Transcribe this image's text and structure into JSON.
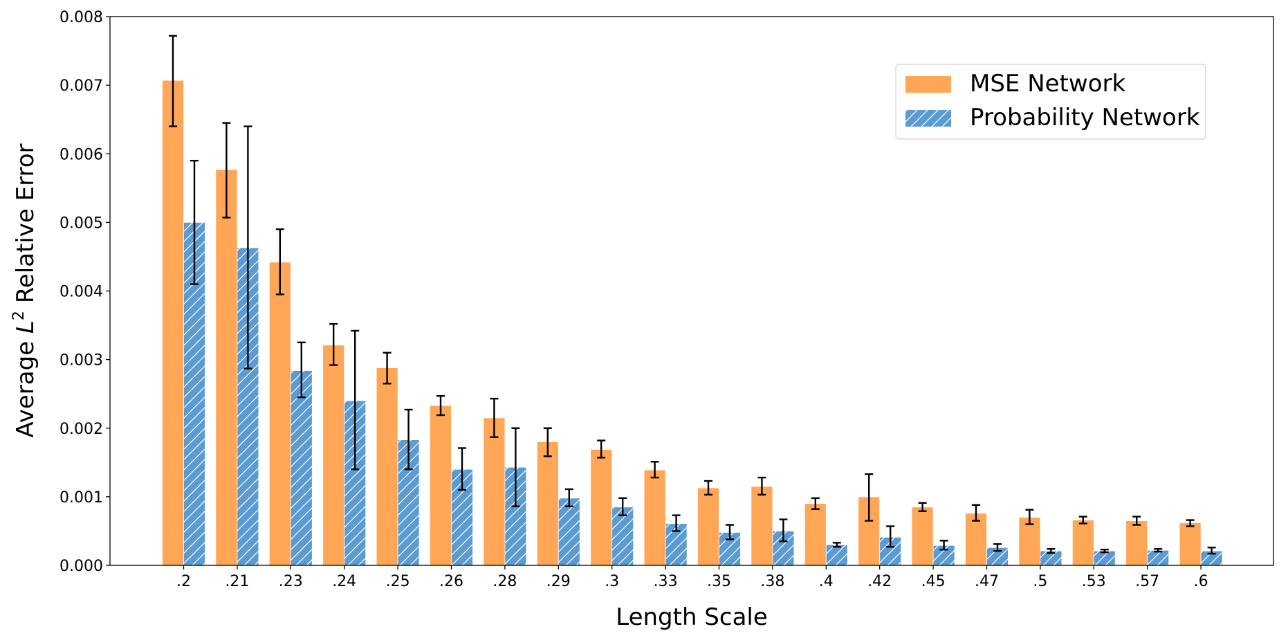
{
  "chart_data": {
    "type": "bar",
    "xlabel": "Length Scale",
    "ylabel_prefix": "Average ",
    "ylabel_symbol": "L",
    "ylabel_superscript": "2",
    "ylabel_suffix": " Relative Error",
    "ylim": [
      0,
      0.008
    ],
    "yticks": [
      "0.000",
      "0.001",
      "0.002",
      "0.003",
      "0.004",
      "0.005",
      "0.006",
      "0.007",
      "0.008"
    ],
    "categories": [
      ".2",
      ".21",
      ".23",
      ".24",
      ".25",
      ".26",
      ".28",
      ".29",
      ".3",
      ".33",
      ".35",
      ".38",
      ".4",
      ".42",
      ".45",
      ".47",
      ".5",
      ".53",
      ".57",
      ".6"
    ],
    "legend_position": "top-right",
    "series": [
      {
        "name": "MSE Network",
        "color": "#ffa657",
        "pattern": "solid",
        "values": [
          0.00707,
          0.00577,
          0.00442,
          0.00321,
          0.00288,
          0.00233,
          0.00215,
          0.0018,
          0.00169,
          0.00139,
          0.00113,
          0.00115,
          0.0009,
          0.001,
          0.00085,
          0.00076,
          0.0007,
          0.00066,
          0.00065,
          0.00062
        ],
        "err_low": [
          0.0064,
          0.00507,
          0.00395,
          0.00292,
          0.00265,
          0.00219,
          0.00187,
          0.00159,
          0.00157,
          0.00128,
          0.00103,
          0.00103,
          0.00082,
          0.00065,
          0.00079,
          0.00065,
          0.0006,
          0.00061,
          0.00059,
          0.00057
        ],
        "err_high": [
          0.00772,
          0.00645,
          0.0049,
          0.00352,
          0.0031,
          0.00247,
          0.00243,
          0.002,
          0.00182,
          0.00151,
          0.00123,
          0.00128,
          0.00098,
          0.00133,
          0.00091,
          0.00088,
          0.00081,
          0.00071,
          0.00071,
          0.00066
        ]
      },
      {
        "name": "Probability Network",
        "color": "#5b9bd1",
        "pattern": "hatched",
        "values": [
          0.005,
          0.00463,
          0.00284,
          0.0024,
          0.00183,
          0.0014,
          0.00143,
          0.00098,
          0.00085,
          0.00061,
          0.00048,
          0.0005,
          0.0003,
          0.00041,
          0.00029,
          0.00026,
          0.00021,
          0.00021,
          0.00022,
          0.00021
        ],
        "err_low": [
          0.0041,
          0.00287,
          0.00245,
          0.0014,
          0.0014,
          0.0011,
          0.00086,
          0.00086,
          0.00073,
          0.0005,
          0.00038,
          0.00035,
          0.00027,
          0.00027,
          0.00023,
          0.00021,
          0.00018,
          0.00019,
          0.0002,
          0.00017
        ],
        "err_high": [
          0.0059,
          0.0064,
          0.00325,
          0.00342,
          0.00227,
          0.00171,
          0.002,
          0.00111,
          0.00098,
          0.00073,
          0.00059,
          0.00067,
          0.00033,
          0.00057,
          0.00036,
          0.00031,
          0.00024,
          0.00023,
          0.00024,
          0.00026
        ]
      }
    ]
  }
}
